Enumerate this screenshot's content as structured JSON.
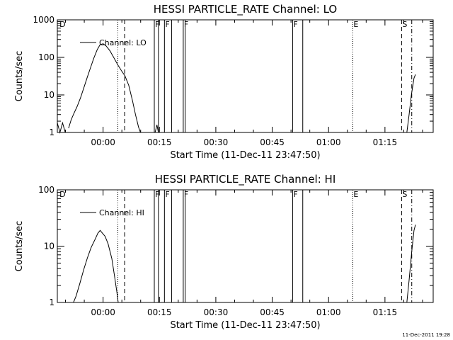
{
  "footer": {
    "timestamp": "11-Dec-2011 19:28"
  },
  "chart_data": [
    {
      "type": "line",
      "title": "HESSI PARTICLE_RATE Channel: LO",
      "xlabel": "Start Time (11-Dec-11 23:47:50)",
      "ylabel": "Counts/sec",
      "x_unit": "minutes since 11-Dec-11 23:47:50",
      "xlim": [
        0,
        100
      ],
      "ylim": [
        1,
        1000
      ],
      "yscale": "log",
      "grid": false,
      "legend": {
        "position": "top-left",
        "entries": [
          "Channel: LO"
        ]
      },
      "x_ticks": [
        {
          "x": 12.17,
          "label": "00:00"
        },
        {
          "x": 27.17,
          "label": "00:15"
        },
        {
          "x": 42.17,
          "label": "00:30"
        },
        {
          "x": 57.17,
          "label": "00:45"
        },
        {
          "x": 72.17,
          "label": "01:00"
        },
        {
          "x": 87.17,
          "label": "01:15"
        }
      ],
      "y_ticks": [
        {
          "y": 1,
          "label": "1"
        },
        {
          "y": 10,
          "label": "10"
        },
        {
          "y": 100,
          "label": "100"
        },
        {
          "y": 1000,
          "label": "1000"
        }
      ],
      "flags": [
        {
          "label": "D",
          "x": 0.4,
          "style": "none"
        },
        {
          "label": "",
          "x": 16.1,
          "style": "dotted"
        },
        {
          "label": "",
          "x": 17.9,
          "style": "dashed"
        },
        {
          "label": "F",
          "x": 25.8,
          "style": "solid"
        },
        {
          "label": "",
          "x": 26.9,
          "style": "solid"
        },
        {
          "label": "F",
          "x": 28.5,
          "style": "solid"
        },
        {
          "label": "",
          "x": 30.4,
          "style": "solid"
        },
        {
          "label": "F",
          "x": 33.5,
          "style": "solid"
        },
        {
          "label": "",
          "x": 34.0,
          "style": "solid"
        },
        {
          "label": "F",
          "x": 62.6,
          "style": "solid"
        },
        {
          "label": "",
          "x": 65.3,
          "style": "solid"
        },
        {
          "label": "E",
          "x": 78.6,
          "style": "dotted"
        },
        {
          "label": "S",
          "x": 91.6,
          "style": "dashed"
        },
        {
          "label": "",
          "x": 94.3,
          "style": "dashdot"
        }
      ],
      "series": [
        {
          "name": "Channel: LO",
          "segments": [
            [
              [
                0.0,
                1.8
              ],
              [
                0.7,
                1.0
              ],
              [
                1.4,
                1.8
              ],
              [
                2.1,
                1.0
              ]
            ],
            [
              [
                3.0,
                1.3
              ],
              [
                3.7,
                2.2
              ],
              [
                4.4,
                3.2
              ],
              [
                5.3,
                5.0
              ],
              [
                6.2,
                8.5
              ],
              [
                7.0,
                15
              ],
              [
                7.9,
                28
              ],
              [
                8.8,
                52
              ],
              [
                9.7,
                95
              ],
              [
                10.6,
                160
              ],
              [
                11.4,
                220
              ],
              [
                12.2,
                230
              ],
              [
                13.0,
                200
              ],
              [
                14.0,
                150
              ],
              [
                15.0,
                100
              ],
              [
                16.0,
                65
              ],
              [
                17.0,
                45
              ],
              [
                18.0,
                32
              ],
              [
                19.0,
                18
              ],
              [
                20.0,
                7
              ],
              [
                20.8,
                3
              ],
              [
                21.6,
                1.4
              ],
              [
                22.1,
                1.0
              ]
            ],
            [
              [
                26.0,
                1.0
              ],
              [
                26.5,
                1.6
              ],
              [
                26.9,
                1.0
              ]
            ],
            [
              [
                93.0,
                1.0
              ],
              [
                93.6,
                3.0
              ],
              [
                94.2,
                10
              ],
              [
                94.9,
                28
              ],
              [
                95.3,
                35
              ]
            ]
          ]
        }
      ]
    },
    {
      "type": "line",
      "title": "HESSI PARTICLE_RATE Channel: HI",
      "xlabel": "Start Time (11-Dec-11 23:47:50)",
      "ylabel": "Counts/sec",
      "x_unit": "minutes since 11-Dec-11 23:47:50",
      "xlim": [
        0,
        100
      ],
      "ylim": [
        1,
        100
      ],
      "yscale": "log",
      "grid": false,
      "legend": {
        "position": "top-left",
        "entries": [
          "Channel: HI"
        ]
      },
      "x_ticks": [
        {
          "x": 12.17,
          "label": "00:00"
        },
        {
          "x": 27.17,
          "label": "00:15"
        },
        {
          "x": 42.17,
          "label": "00:30"
        },
        {
          "x": 57.17,
          "label": "00:45"
        },
        {
          "x": 72.17,
          "label": "01:00"
        },
        {
          "x": 87.17,
          "label": "01:15"
        }
      ],
      "y_ticks": [
        {
          "y": 1,
          "label": "1"
        },
        {
          "y": 10,
          "label": "10"
        },
        {
          "y": 100,
          "label": "100"
        }
      ],
      "flags": [
        {
          "label": "D",
          "x": 0.4,
          "style": "none"
        },
        {
          "label": "",
          "x": 16.1,
          "style": "dotted"
        },
        {
          "label": "",
          "x": 17.9,
          "style": "dashed"
        },
        {
          "label": "F",
          "x": 25.8,
          "style": "solid"
        },
        {
          "label": "",
          "x": 26.9,
          "style": "solid"
        },
        {
          "label": "F",
          "x": 28.5,
          "style": "solid"
        },
        {
          "label": "",
          "x": 30.4,
          "style": "solid"
        },
        {
          "label": "F",
          "x": 33.5,
          "style": "solid"
        },
        {
          "label": "",
          "x": 34.0,
          "style": "solid"
        },
        {
          "label": "F",
          "x": 62.6,
          "style": "solid"
        },
        {
          "label": "",
          "x": 65.3,
          "style": "solid"
        },
        {
          "label": "E",
          "x": 78.6,
          "style": "dotted"
        },
        {
          "label": "S",
          "x": 91.6,
          "style": "dashed"
        },
        {
          "label": "",
          "x": 94.3,
          "style": "dashdot"
        }
      ],
      "series": [
        {
          "name": "Channel: HI",
          "segments": [
            [
              [
                4.3,
                1.0
              ],
              [
                5.0,
                1.3
              ],
              [
                6.0,
                2.2
              ],
              [
                7.0,
                3.8
              ],
              [
                8.0,
                6.2
              ],
              [
                9.0,
                9.5
              ],
              [
                10.0,
                13
              ],
              [
                10.8,
                17
              ],
              [
                11.4,
                19
              ],
              [
                12.0,
                17
              ],
              [
                12.7,
                15
              ],
              [
                13.5,
                11
              ],
              [
                14.5,
                6
              ],
              [
                15.2,
                3
              ],
              [
                15.8,
                1.6
              ],
              [
                16.2,
                1.0
              ]
            ],
            [
              [
                93.0,
                1.0
              ],
              [
                93.6,
                2.5
              ],
              [
                94.3,
                8
              ],
              [
                94.9,
                19
              ],
              [
                95.3,
                24
              ]
            ]
          ]
        }
      ]
    }
  ]
}
